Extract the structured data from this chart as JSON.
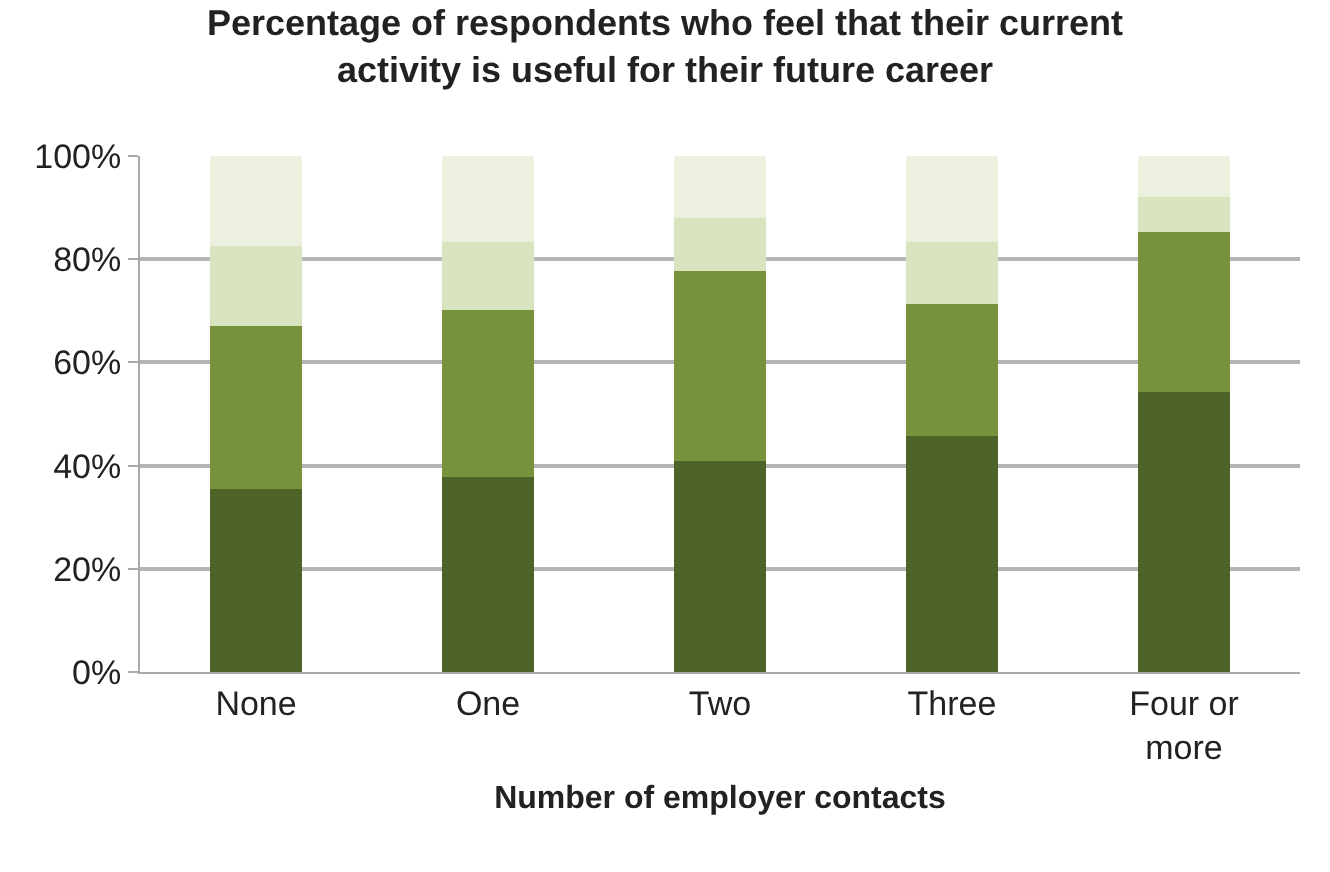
{
  "chart_data": {
    "type": "bar",
    "title": "Percentage of respondents who feel that their current activity is useful for their future career",
    "xlabel": "Number of employer contacts",
    "categories": [
      "None",
      "One",
      "Two",
      "Three",
      "Four or more"
    ],
    "stacked": true,
    "series": [
      {
        "color": "#4f6228",
        "values": [
          35.5,
          37.7,
          40.9,
          45.8,
          54.3
        ]
      },
      {
        "color": "#77933c",
        "values": [
          31.5,
          32.4,
          36.8,
          25.5,
          31.0
        ]
      },
      {
        "color": "#d7e4bd",
        "values": [
          15.6,
          13.3,
          10.2,
          12.1,
          6.8
        ]
      },
      {
        "color": "#ebf1de",
        "values": [
          17.4,
          16.6,
          12.1,
          16.6,
          7.9
        ]
      }
    ],
    "ylim": [
      0,
      100
    ],
    "yticks": [
      {
        "value": 0,
        "label": "0%"
      },
      {
        "value": 20,
        "label": "20%"
      },
      {
        "value": 40,
        "label": "40%"
      },
      {
        "value": 60,
        "label": "60%"
      },
      {
        "value": 80,
        "label": "80%"
      },
      {
        "value": 100,
        "label": "100%"
      }
    ],
    "grid": "y"
  }
}
